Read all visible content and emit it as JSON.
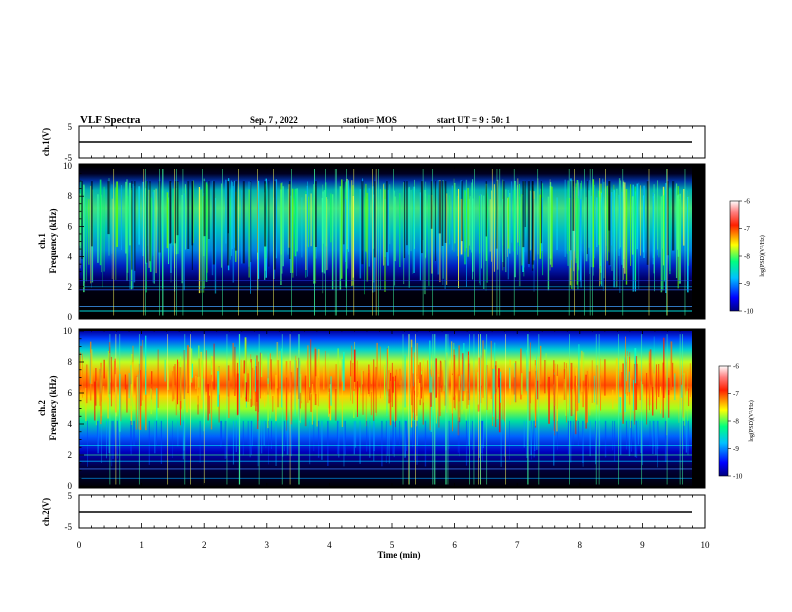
{
  "header": {
    "title": "VLF Spectra",
    "date": "Sep. 7 , 2022",
    "station": "station= MOS",
    "start": "start UT = 9 : 50: 1"
  },
  "colors": {
    "background": "#000000",
    "trace": "#000000",
    "scale": [
      "#0000ff",
      "#00a0ff",
      "#00ffff",
      "#00ff00",
      "#ffff00",
      "#ff0000",
      "#ffffff"
    ]
  },
  "chart_data": [
    {
      "type": "line",
      "ylabel": "ch.1(V)",
      "ylim": [
        -5,
        5
      ],
      "yticks": [
        "5",
        "-5"
      ],
      "level": 0
    },
    {
      "type": "heatmap",
      "ylabel_top": "ch.1",
      "ylabel": "Frequency (kHz)",
      "ylim": [
        0,
        10
      ],
      "yticks": [
        "0",
        "2",
        "4",
        "6",
        "8",
        "10"
      ],
      "band_khz": [
        2,
        9
      ],
      "colorbar": {
        "label": "log(PSD)(V²/Hz)",
        "range": [
          -10,
          -6
        ],
        "ticks": [
          "-6",
          "-7",
          "-8",
          "-9",
          "-10"
        ]
      }
    },
    {
      "type": "heatmap",
      "ylabel_top": "ch.2",
      "ylabel": "Frequency (kHz)",
      "ylim": [
        0,
        10
      ],
      "yticks": [
        "0",
        "2",
        "4",
        "6",
        "8",
        "10"
      ],
      "band_khz": [
        2,
        9.5
      ],
      "peak_khz": 6.5,
      "colorbar": {
        "label": "log(PSD)(V²/Hz)",
        "range": [
          -10,
          -6
        ],
        "ticks": [
          "-6",
          "-7",
          "-8",
          "-9",
          "-10"
        ]
      }
    },
    {
      "type": "line",
      "ylabel": "ch.2(V)",
      "ylim": [
        -5,
        5
      ],
      "yticks": [
        "5",
        "-5"
      ],
      "level": 0
    }
  ],
  "xaxis": {
    "label": "Time (min)",
    "xlim": [
      0,
      10
    ],
    "ticks": [
      "0",
      "1",
      "2",
      "3",
      "4",
      "5",
      "6",
      "7",
      "8",
      "9",
      "10"
    ]
  }
}
